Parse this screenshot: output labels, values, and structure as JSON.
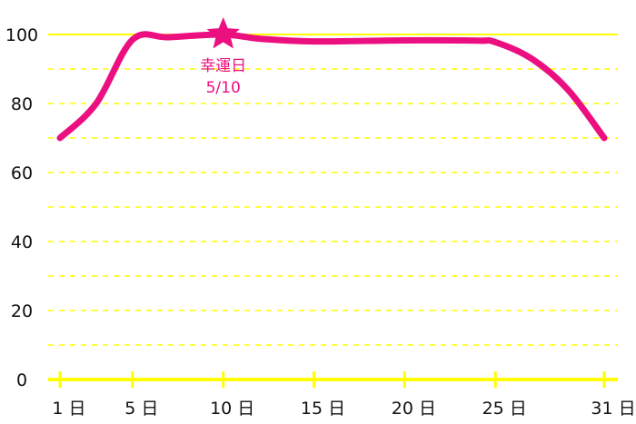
{
  "colors": {
    "line": "#ec0f80",
    "grid": "#ffff00",
    "axis": "#ffff00",
    "text": "#111111"
  },
  "chart_data": {
    "type": "line",
    "title": "",
    "xlabel": "",
    "ylabel": "",
    "ylim": [
      0,
      100
    ],
    "xlim": [
      1,
      31
    ],
    "grid": true,
    "y_ticks": [
      {
        "value": 0,
        "label": "0"
      },
      {
        "value": 20,
        "label": "20"
      },
      {
        "value": 40,
        "label": "40"
      },
      {
        "value": 60,
        "label": "60"
      },
      {
        "value": 80,
        "label": "80"
      },
      {
        "value": 100,
        "label": "100"
      }
    ],
    "x_ticks": [
      {
        "value": 1,
        "label": "1 日"
      },
      {
        "value": 5,
        "label": "5 日"
      },
      {
        "value": 10,
        "label": "10 日"
      },
      {
        "value": 15,
        "label": "15 日"
      },
      {
        "value": 20,
        "label": "20 日"
      },
      {
        "value": 25,
        "label": "25 日"
      },
      {
        "value": 31,
        "label": "31 日"
      }
    ],
    "series": [
      {
        "x": [
          1,
          3,
          5,
          7,
          10,
          12,
          15,
          20,
          24,
          25,
          27,
          29,
          31
        ],
        "values": [
          70,
          80,
          98.5,
          99.2,
          100,
          98.8,
          98,
          98.3,
          98.2,
          97.8,
          93,
          84,
          70
        ]
      }
    ],
    "annotations": [
      {
        "x": 10,
        "y": 100,
        "marker": "star-icon",
        "label_line1": "幸運日",
        "label_line2": "5/10"
      }
    ]
  }
}
